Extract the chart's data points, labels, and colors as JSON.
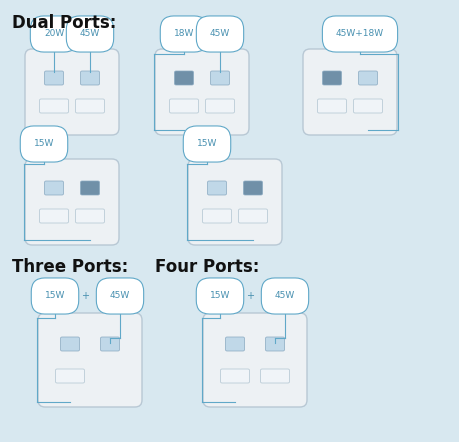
{
  "bg_color": "#d8e8f0",
  "charger_fill": "#edf1f4",
  "charger_edge": "#b8c8d4",
  "port_c_fill_light": "#c0d8e8",
  "port_c_fill_dark": "#7090a8",
  "port_a_fill": "#f0f4f8",
  "port_a_edge": "#b0c4d0",
  "label_fill": "#ffffff",
  "label_edge": "#60a8c8",
  "label_text": "#4890b0",
  "line_col": "#60a8c8",
  "title_dual": "Dual Ports:",
  "title_three": "Three Ports:",
  "title_four": "Four Ports:"
}
